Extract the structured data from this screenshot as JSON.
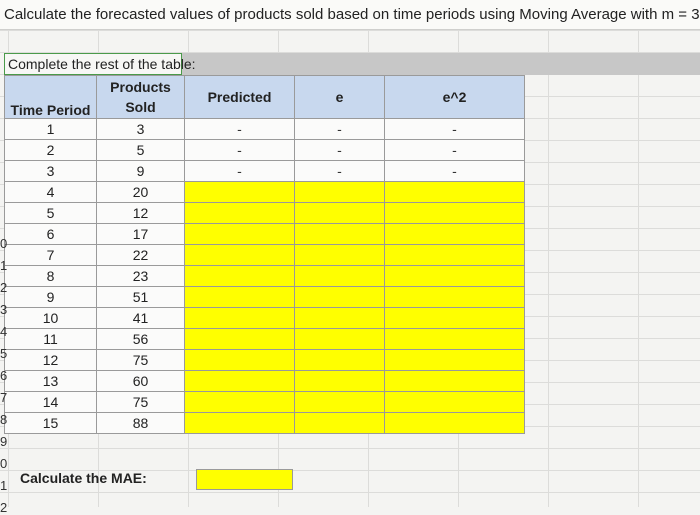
{
  "title": "Calculate the forecasted values of products sold based on time periods using Moving Average with m = 3.",
  "complete_label": "Complete the rest of the table:",
  "headers": {
    "time_period": "Time Period",
    "products_line1": "Products",
    "products_line2": "Sold",
    "predicted": "Predicted",
    "e": "e",
    "e2": "e^2"
  },
  "rows": [
    {
      "t": "1",
      "sold": "3",
      "pred": "-",
      "e": "-",
      "e2": "-"
    },
    {
      "t": "2",
      "sold": "5",
      "pred": "-",
      "e": "-",
      "e2": "-"
    },
    {
      "t": "3",
      "sold": "9",
      "pred": "-",
      "e": "-",
      "e2": "-"
    },
    {
      "t": "4",
      "sold": "20"
    },
    {
      "t": "5",
      "sold": "12"
    },
    {
      "t": "6",
      "sold": "17"
    },
    {
      "t": "7",
      "sold": "22"
    },
    {
      "t": "8",
      "sold": "23"
    },
    {
      "t": "9",
      "sold": "51"
    },
    {
      "t": "10",
      "sold": "41"
    },
    {
      "t": "11",
      "sold": "56"
    },
    {
      "t": "12",
      "sold": "75"
    },
    {
      "t": "13",
      "sold": "60"
    },
    {
      "t": "14",
      "sold": "75"
    },
    {
      "t": "15",
      "sold": "88"
    }
  ],
  "row_numbers": [
    "0",
    "1",
    "2",
    "3",
    "4",
    "5",
    "6",
    "7",
    "8",
    "9",
    "0",
    "1",
    "2"
  ],
  "mae_label": "Calculate the MAE:",
  "colors": {
    "header": "#c8d8ee",
    "highlight": "#ffff00"
  }
}
